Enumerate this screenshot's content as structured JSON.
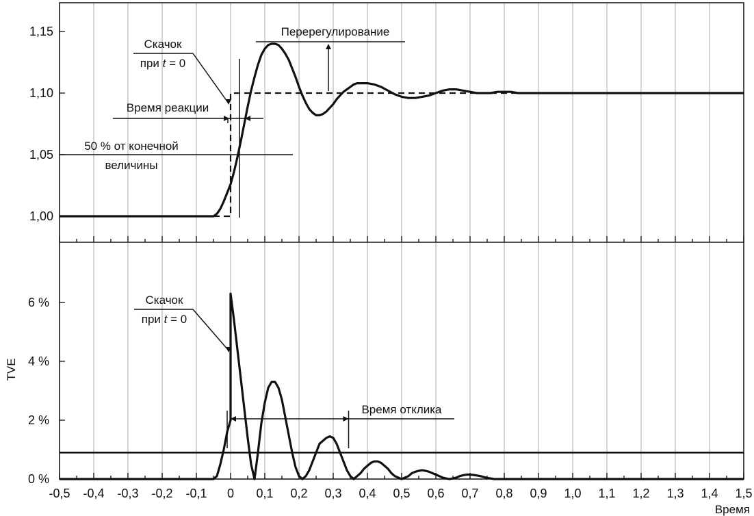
{
  "chart_data": [
    {
      "type": "line",
      "panel": "top",
      "ylim": [
        0.99,
        1.17
      ],
      "xlim": [
        -0.5,
        1.5
      ],
      "y_ticks": [
        1.0,
        1.05,
        1.1,
        1.15
      ],
      "y_tick_labels": [
        "1,00",
        "1,05",
        "1,10",
        "1,15"
      ],
      "grid": true,
      "series": [
        {
          "style": "solid",
          "x": [
            -0.5,
            -0.05,
            -0.04,
            -0.03,
            -0.02,
            -0.01,
            0.0,
            0.01,
            0.02,
            0.03,
            0.04,
            0.05,
            0.06,
            0.07,
            0.08,
            0.09,
            0.1,
            0.11,
            0.12,
            0.13,
            0.14,
            0.15,
            0.16,
            0.17,
            0.18,
            0.19,
            0.2,
            0.21,
            0.22,
            0.23,
            0.24,
            0.25,
            0.26,
            0.27,
            0.28,
            0.29,
            0.3,
            0.31,
            0.32,
            0.33,
            0.34,
            0.35,
            0.36,
            0.37,
            0.38,
            0.39,
            0.4,
            0.42,
            0.44,
            0.46,
            0.48,
            0.5,
            0.52,
            0.54,
            0.56,
            0.58,
            0.6,
            0.62,
            0.64,
            0.66,
            0.68,
            0.7,
            0.72,
            0.74,
            0.76,
            0.78,
            0.8,
            0.82,
            0.84,
            0.86,
            0.9,
            1.0,
            1.2,
            1.5
          ],
          "y": [
            1.0,
            1.0,
            1.002,
            1.006,
            1.012,
            1.019,
            1.026,
            1.036,
            1.048,
            1.061,
            1.075,
            1.089,
            1.102,
            1.113,
            1.123,
            1.131,
            1.136,
            1.139,
            1.14,
            1.14,
            1.139,
            1.136,
            1.132,
            1.127,
            1.12,
            1.113,
            1.105,
            1.098,
            1.092,
            1.087,
            1.084,
            1.082,
            1.082,
            1.083,
            1.085,
            1.088,
            1.091,
            1.095,
            1.098,
            1.101,
            1.103,
            1.105,
            1.107,
            1.108,
            1.108,
            1.108,
            1.108,
            1.107,
            1.105,
            1.102,
            1.099,
            1.097,
            1.096,
            1.096,
            1.097,
            1.098,
            1.1,
            1.102,
            1.103,
            1.103,
            1.102,
            1.101,
            1.1,
            1.1,
            1.1,
            1.101,
            1.101,
            1.101,
            1.1,
            1.1,
            1.1,
            1.1,
            1.1,
            1.1
          ]
        },
        {
          "style": "dashed",
          "x": [
            -0.5,
            0.0,
            0.0,
            1.5
          ],
          "y": [
            1.0,
            1.0,
            1.1,
            1.1
          ]
        }
      ],
      "annotations": [
        {
          "id": "jump",
          "line1": "Скачок",
          "line2_prefix": "при ",
          "line2_italic": "t",
          "line2_suffix": " = 0"
        },
        {
          "id": "overshoot",
          "text": "Перерегулирование"
        },
        {
          "id": "reaction",
          "text": "Время реакции"
        },
        {
          "id": "fifty",
          "line1": "50 % от конечной",
          "line2": "величины"
        }
      ]
    },
    {
      "type": "line",
      "panel": "bottom",
      "ylabel": "TVE",
      "xlabel": "Время",
      "xlim": [
        -0.5,
        1.5
      ],
      "ylim": [
        0,
        8
      ],
      "x_ticks": [
        -0.5,
        -0.4,
        -0.3,
        -0.2,
        -0.1,
        0,
        0.1,
        0.2,
        0.3,
        0.4,
        0.5,
        0.6,
        0.7,
        0.8,
        0.9,
        1.0,
        1.1,
        1.2,
        1.3,
        1.4,
        1.5
      ],
      "x_tick_labels": [
        "-0,5",
        "-0,4",
        "-0,3",
        "-0,2",
        "-0,1",
        "0",
        "0,1",
        "0,2",
        "0,3",
        "0,4",
        "0,5",
        "0,6",
        "0,7",
        "0,8",
        "0,9",
        "1,0",
        "1,1",
        "1,2",
        "1,3",
        "1,4",
        "1,5"
      ],
      "y_ticks": [
        0,
        2,
        4,
        6
      ],
      "y_tick_labels": [
        "0 %",
        "2 %",
        "4 %",
        "6 %"
      ],
      "grid": true,
      "threshold": 0.9,
      "series": [
        {
          "style": "solid",
          "x": [
            -0.5,
            -0.05,
            -0.04,
            -0.03,
            -0.02,
            -0.01,
            0.0,
            0.0,
            0.01,
            0.02,
            0.03,
            0.04,
            0.05,
            0.06,
            0.07,
            0.08,
            0.09,
            0.1,
            0.11,
            0.12,
            0.13,
            0.14,
            0.15,
            0.16,
            0.17,
            0.18,
            0.19,
            0.2,
            0.21,
            0.22,
            0.23,
            0.24,
            0.25,
            0.26,
            0.27,
            0.28,
            0.29,
            0.3,
            0.31,
            0.32,
            0.33,
            0.34,
            0.35,
            0.36,
            0.37,
            0.38,
            0.39,
            0.4,
            0.41,
            0.42,
            0.43,
            0.44,
            0.45,
            0.46,
            0.47,
            0.48,
            0.49,
            0.5,
            0.51,
            0.52,
            0.53,
            0.54,
            0.55,
            0.56,
            0.57,
            0.58,
            0.59,
            0.6,
            0.61,
            0.62,
            0.63,
            0.64,
            0.65,
            0.66,
            0.67,
            0.68,
            0.69,
            0.7,
            0.71,
            0.72,
            0.73,
            0.74,
            0.75,
            0.76,
            0.77,
            0.78,
            0.79,
            0.8,
            0.81,
            0.82,
            0.83,
            0.84,
            0.85,
            0.86,
            0.9,
            1.0,
            1.5
          ],
          "y": [
            0.0,
            0.0,
            0.1,
            0.5,
            1.0,
            1.6,
            2.0,
            6.3,
            5.4,
            4.4,
            3.4,
            2.4,
            1.4,
            0.5,
            0.0,
            0.9,
            1.9,
            2.6,
            3.1,
            3.3,
            3.3,
            3.1,
            2.7,
            2.1,
            1.5,
            0.9,
            0.4,
            0.1,
            0.0,
            0.1,
            0.3,
            0.6,
            0.9,
            1.2,
            1.3,
            1.4,
            1.45,
            1.4,
            1.2,
            0.9,
            0.6,
            0.3,
            0.1,
            0.0,
            0.1,
            0.2,
            0.35,
            0.45,
            0.55,
            0.6,
            0.6,
            0.55,
            0.45,
            0.35,
            0.2,
            0.1,
            0.05,
            0.0,
            0.05,
            0.1,
            0.2,
            0.25,
            0.28,
            0.3,
            0.28,
            0.25,
            0.2,
            0.15,
            0.1,
            0.05,
            0.02,
            0.0,
            0.02,
            0.05,
            0.1,
            0.13,
            0.15,
            0.15,
            0.14,
            0.12,
            0.1,
            0.07,
            0.04,
            0.02,
            0.0,
            0.0,
            0.0,
            0.0,
            0.0,
            0.0,
            0.0,
            0.0,
            0.0,
            0.0,
            0.0,
            0.0,
            0.0
          ]
        }
      ],
      "annotations": [
        {
          "id": "jump",
          "line1": "Скачок",
          "line2_prefix": "при ",
          "line2_italic": "t",
          "line2_suffix": " = 0"
        },
        {
          "id": "response",
          "text": "Время отклика"
        }
      ]
    }
  ]
}
